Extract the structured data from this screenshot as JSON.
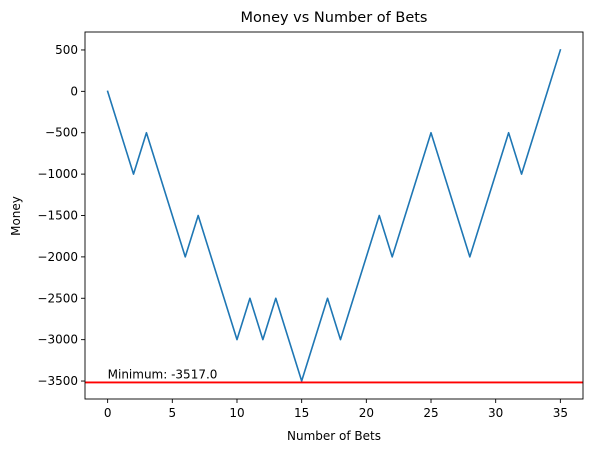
{
  "chart_data": {
    "type": "line",
    "title": "Money vs Number of Bets",
    "xlabel": "Number of Bets",
    "ylabel": "Money",
    "xlim": [
      -1.75,
      36.75
    ],
    "ylim": [
      -3717,
      717
    ],
    "xticks": [
      0,
      5,
      10,
      15,
      20,
      25,
      30,
      35
    ],
    "yticks": [
      500,
      0,
      -500,
      -1000,
      -1500,
      -2000,
      -2500,
      -3000,
      -3500
    ],
    "ytick_labels": [
      "500",
      "0",
      "−500",
      "−1000",
      "−1500",
      "−2000",
      "−2500",
      "−3000",
      "−3500"
    ],
    "grid": false,
    "series": [
      {
        "color": "#1f77b4",
        "x": [
          0,
          1,
          2,
          3,
          4,
          5,
          6,
          7,
          8,
          9,
          10,
          11,
          12,
          13,
          14,
          15,
          16,
          17,
          18,
          19,
          20,
          21,
          22,
          23,
          24,
          25,
          26,
          27,
          28,
          29,
          30,
          31,
          32,
          33,
          34,
          35
        ],
        "values": [
          0,
          -500,
          -1000,
          -500,
          -1000,
          -1500,
          -2000,
          -1500,
          -2000,
          -2500,
          -3000,
          -2500,
          -3000,
          -2500,
          -3000,
          -3500,
          -3000,
          -2500,
          -3000,
          -2500,
          -2000,
          -1500,
          -2000,
          -1500,
          -1000,
          -500,
          -1000,
          -1500,
          -2000,
          -1500,
          -1000,
          -500,
          -1000,
          -500,
          0,
          500
        ]
      }
    ],
    "minimum_line": {
      "value": -3517,
      "color": "#ff0000",
      "label": "Minimum: -3517.0"
    }
  }
}
